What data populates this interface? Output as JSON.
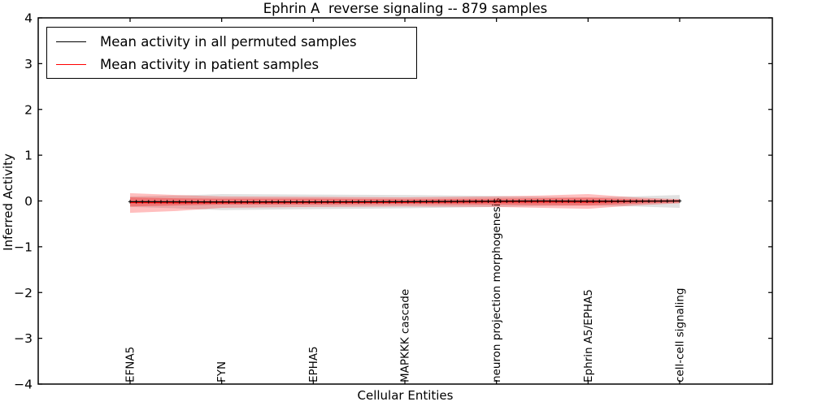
{
  "title": "Ephrin A  reverse signaling -- 879 samples",
  "xlabel": "Cellular Entities",
  "ylabel": "Inferred Activity",
  "legend": {
    "items": [
      {
        "label": "Mean activity in all permuted samples",
        "color": "#000000"
      },
      {
        "label": "Mean activity in patient samples",
        "color": "#ff0000"
      }
    ]
  },
  "chart_data": {
    "type": "line",
    "title": "Ephrin A  reverse signaling -- 879 samples",
    "xlabel": "Cellular Entities",
    "ylabel": "Inferred Activity",
    "ylim": [
      -4,
      4
    ],
    "ytick_labels": [
      "4",
      "3",
      "2",
      "1",
      "0",
      "−1",
      "−2",
      "−3",
      "−4"
    ],
    "ytick_values": [
      4,
      3,
      2,
      1,
      0,
      -1,
      -2,
      -3,
      -4
    ],
    "grid": false,
    "legend_position": "upper left",
    "categories": [
      "EFNA5",
      "FYN",
      "EPHA5",
      "MAPKKK cascade",
      "neuron projection morphogenesis",
      "Ephrin A5/EPHA5",
      "cell-cell signaling"
    ],
    "x_stations": [
      0,
      0.5,
      1,
      2,
      3,
      4,
      4.5,
      5,
      5.5,
      6
    ],
    "series": [
      {
        "name": "Mean activity in all permuted samples",
        "color": "#000000",
        "band_color": "rgba(120,120,120,0.22)",
        "values": [
          -0.015,
          -0.018,
          -0.02,
          -0.02,
          -0.015,
          -0.005,
          0.0,
          -0.005,
          -0.005,
          0.0
        ],
        "band_upper": [
          0.1,
          0.12,
          0.15,
          0.14,
          0.13,
          0.11,
          0.09,
          0.08,
          0.1,
          0.13
        ],
        "band_lower": [
          -0.13,
          -0.16,
          -0.2,
          -0.18,
          -0.16,
          -0.13,
          -0.11,
          -0.1,
          -0.12,
          -0.15
        ]
      },
      {
        "name": "Mean activity in patient samples",
        "color": "#ff0000",
        "band_color": "rgba(255,0,0,0.25)",
        "inner_band_color": "rgba(255,0,0,0.30)",
        "values": [
          -0.035,
          -0.04,
          -0.04,
          -0.035,
          -0.03,
          -0.02,
          -0.02,
          -0.025,
          -0.01,
          0.0
        ],
        "band_upper": [
          0.17,
          0.13,
          0.1,
          0.09,
          0.08,
          0.1,
          0.12,
          0.15,
          0.08,
          0.04
        ],
        "band_lower": [
          -0.26,
          -0.22,
          -0.15,
          -0.13,
          -0.12,
          -0.13,
          -0.15,
          -0.17,
          -0.1,
          -0.05
        ],
        "inner_band_upper": [
          0.08,
          0.06,
          0.05,
          0.05,
          0.04,
          0.05,
          0.06,
          0.07,
          0.04,
          0.02
        ],
        "inner_band_lower": [
          -0.12,
          -0.1,
          -0.08,
          -0.08,
          -0.07,
          -0.08,
          -0.09,
          -0.1,
          -0.06,
          -0.03
        ]
      }
    ],
    "n_marker_points": 90
  }
}
